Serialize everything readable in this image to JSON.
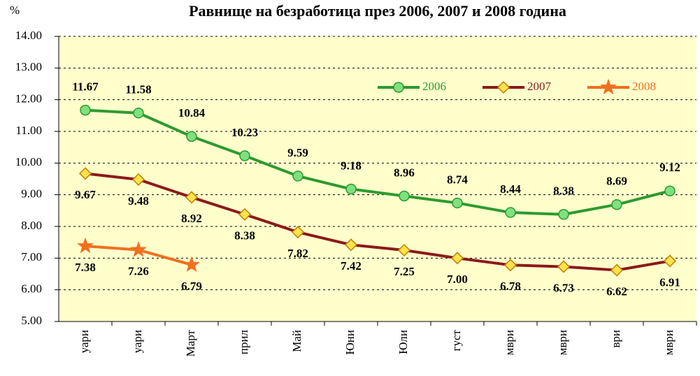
{
  "chart_data": {
    "type": "line",
    "title": "Равнище на безработица през 2006, 2007 и 2008 година",
    "y_label": "%",
    "categories": [
      "уари",
      "уари",
      "Март",
      "прил",
      "Май",
      "Юни",
      "Юли",
      "густ",
      "мври",
      "мври",
      "ври",
      "мври"
    ],
    "series": [
      {
        "name": "2006",
        "color": "#2e9a2e",
        "marker_color": "#7ee07e",
        "marker": "circle",
        "values": [
          11.67,
          11.58,
          10.84,
          10.23,
          9.59,
          9.18,
          8.96,
          8.74,
          8.44,
          8.38,
          8.69,
          9.12
        ],
        "value_labels": [
          "11.67",
          "11.58",
          "10.84",
          "10.23",
          "9.59",
          "9.18",
          "8.96",
          "8.74",
          "8.44",
          "8.38",
          "8.69",
          "9.12"
        ],
        "label_position": "above"
      },
      {
        "name": "2007",
        "color": "#8b1a1a",
        "marker_color": "#ffe34d",
        "marker": "diamond",
        "values": [
          9.67,
          9.48,
          8.92,
          8.38,
          7.82,
          7.42,
          7.25,
          7.0,
          6.78,
          6.73,
          6.62,
          6.91
        ],
        "value_labels": [
          "9.67",
          "9.48",
          "8.92",
          "8.38",
          "7.82",
          "7.42",
          "7.25",
          "7.00",
          "6.78",
          "6.73",
          "6.62",
          "6.91"
        ],
        "label_position": "below"
      },
      {
        "name": "2008",
        "color": "#f07020",
        "marker_color": "#f07020",
        "marker": "star",
        "values": [
          7.38,
          7.26,
          6.79,
          null,
          null,
          null,
          null,
          null,
          null,
          null,
          null,
          null
        ],
        "value_labels": [
          "7.38",
          "7.26",
          "6.79",
          null,
          null,
          null,
          null,
          null,
          null,
          null,
          null,
          null
        ],
        "label_position": "below"
      }
    ],
    "ylim": [
      5,
      14
    ],
    "yticks": [
      {
        "value": 5,
        "label": "5.00"
      },
      {
        "value": 6,
        "label": "6.00"
      },
      {
        "value": 7,
        "label": "7.00"
      },
      {
        "value": 8,
        "label": "8.00"
      },
      {
        "value": 9,
        "label": "9.00"
      },
      {
        "value": 10,
        "label": "10.00"
      },
      {
        "value": 11,
        "label": "11.00"
      },
      {
        "value": 12,
        "label": "12.00"
      },
      {
        "value": 13,
        "label": "13.00"
      },
      {
        "value": 14,
        "label": "14.00"
      }
    ],
    "grid": true,
    "legend": "upper right",
    "plot_background": "#ffffcc"
  }
}
